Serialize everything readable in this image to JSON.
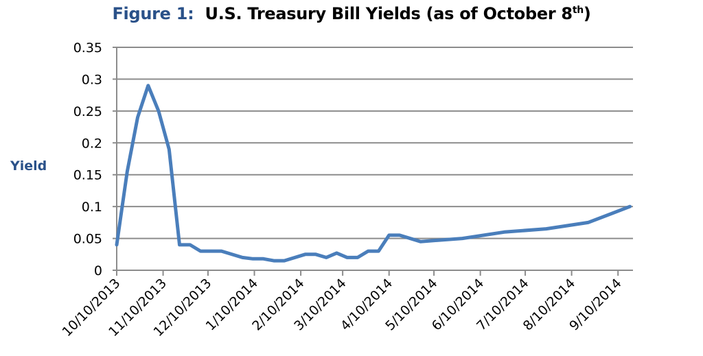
{
  "chart_data": {
    "type": "line",
    "title_prefix": "Figure 1:",
    "title_main": "U.S. Treasury Bill Yields (as of October 8",
    "title_sup": "th",
    "title_suffix": ")",
    "xlabel": "",
    "ylabel": "Yield",
    "ylim": [
      0,
      0.35
    ],
    "yticks": [
      "0",
      "0.05",
      "0.1",
      "0.15",
      "0.2",
      "0.25",
      "0.3",
      "0.35"
    ],
    "x_units": "days since 10/10/2013",
    "xlim": [
      0,
      345
    ],
    "xticks": [
      {
        "label": "10/10/2013",
        "day": 0
      },
      {
        "label": "11/10/2013",
        "day": 31
      },
      {
        "label": "12/10/2013",
        "day": 61
      },
      {
        "label": "1/10/2014",
        "day": 92
      },
      {
        "label": "2/10/2014",
        "day": 123
      },
      {
        "label": "3/10/2014",
        "day": 151
      },
      {
        "label": "4/10/2014",
        "day": 182
      },
      {
        "label": "5/10/2014",
        "day": 212
      },
      {
        "label": "6/10/2014",
        "day": 243
      },
      {
        "label": "7/10/2014",
        "day": 273
      },
      {
        "label": "8/10/2014",
        "day": 304
      },
      {
        "label": "9/10/2014",
        "day": 335
      }
    ],
    "grid": true,
    "series": [
      {
        "name": "Yield",
        "color": "#4a7ebb",
        "x": [
          0,
          7,
          14,
          21,
          28,
          35,
          42,
          49,
          56,
          70,
          84,
          91,
          98,
          105,
          112,
          126,
          133,
          140,
          147,
          154,
          161,
          168,
          175,
          182,
          189,
          203,
          231,
          259,
          287,
          315,
          343
        ],
        "y": [
          0.04,
          0.155,
          0.24,
          0.29,
          0.25,
          0.19,
          0.04,
          0.04,
          0.03,
          0.03,
          0.02,
          0.018,
          0.018,
          0.015,
          0.015,
          0.025,
          0.025,
          0.02,
          0.027,
          0.02,
          0.02,
          0.03,
          0.03,
          0.055,
          0.055,
          0.045,
          0.05,
          0.06,
          0.065,
          0.075,
          0.1
        ]
      }
    ]
  }
}
